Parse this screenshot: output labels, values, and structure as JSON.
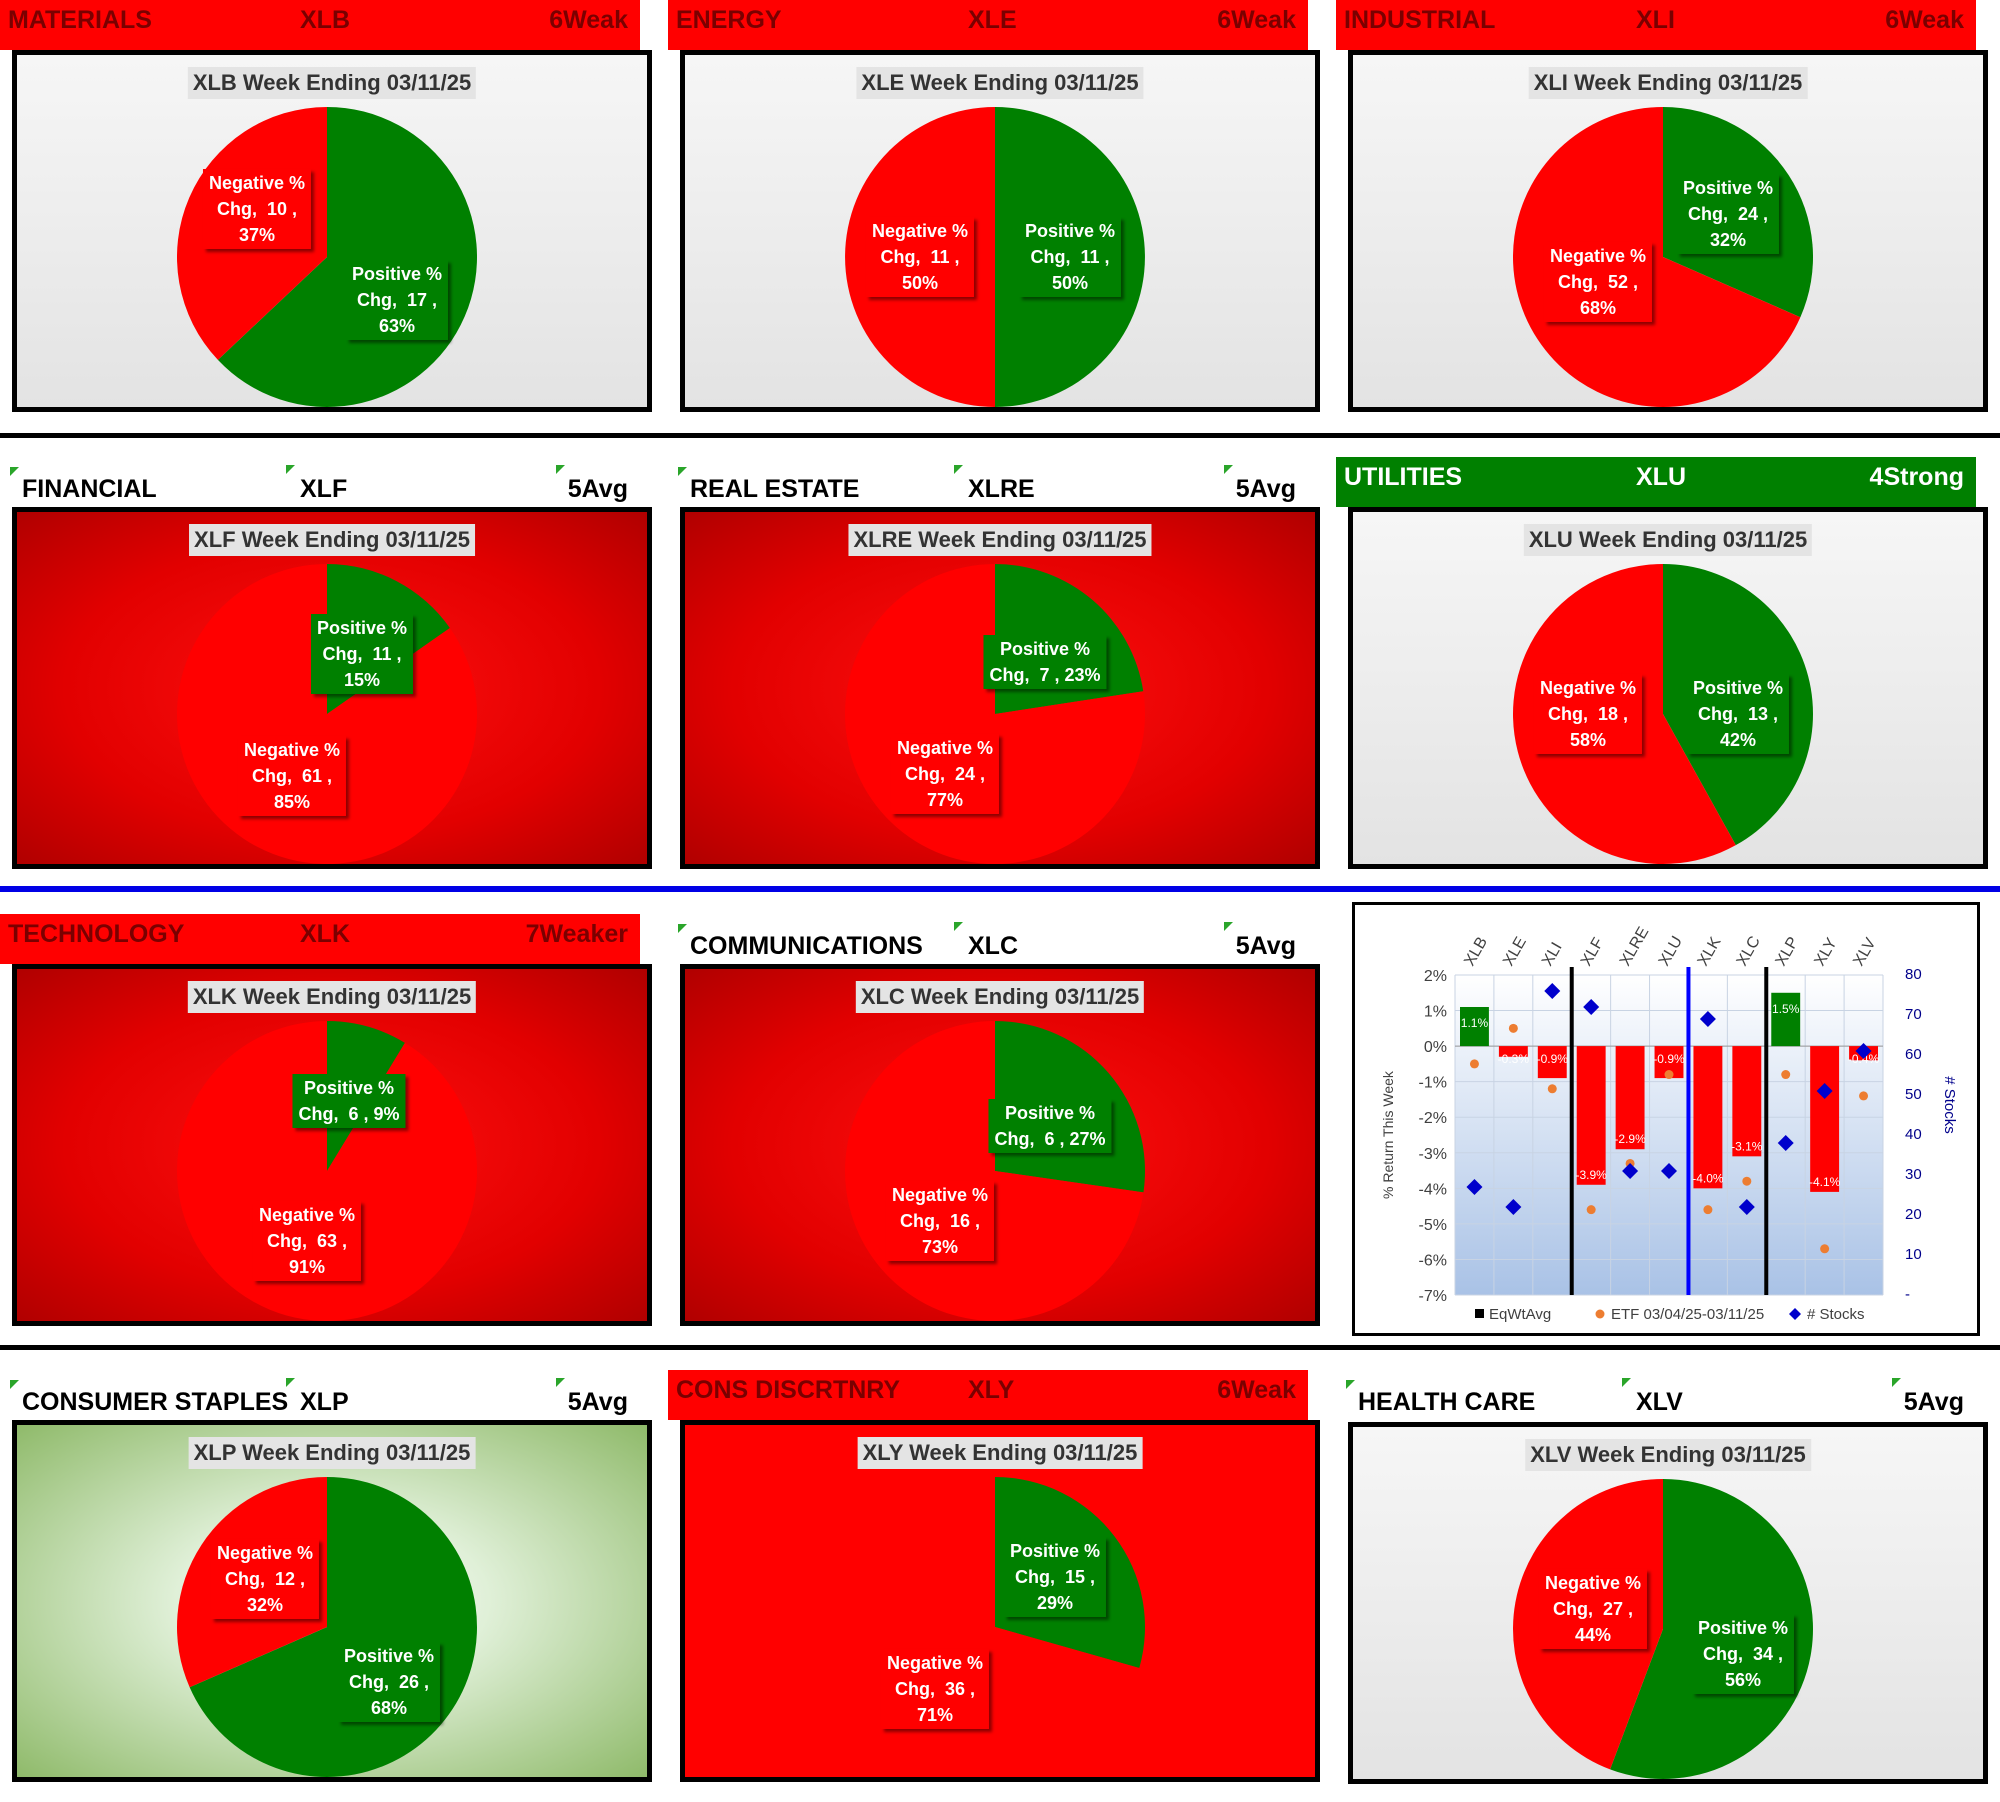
{
  "sectors": [
    {
      "name": "MATERIALS",
      "ticker": "XLB",
      "rating": "6Weak",
      "header_style": "red",
      "panel_bg": "white",
      "title": "XLB Week Ending 03/11/25",
      "pos": {
        "count": "17",
        "pct": "63%"
      },
      "neg": {
        "count": "10",
        "pct": "37%"
      },
      "pos_value": 17,
      "neg_value": 10,
      "pos_label": "Positive %\nChg,  17 ,\n63%",
      "neg_label": "Negative %\nChg,  10 ,\n37%"
    },
    {
      "name": "ENERGY",
      "ticker": "XLE",
      "rating": "6Weak",
      "header_style": "red",
      "panel_bg": "white",
      "title": "XLE Week Ending 03/11/25",
      "pos_value": 11,
      "neg_value": 11,
      "pos_label": "Positive %\nChg,  11 ,\n50%",
      "neg_label": "Negative %\nChg,  11 ,\n50%"
    },
    {
      "name": "INDUSTRIAL",
      "ticker": "XLI",
      "rating": "6Weak",
      "header_style": "red",
      "panel_bg": "white",
      "title": "XLI Week Ending 03/11/25",
      "pos_value": 24,
      "neg_value": 52,
      "pos_label": "Positive %\nChg,  24 ,\n32%",
      "neg_label": "Negative %\nChg,  52 ,\n68%"
    },
    {
      "name": "FINANCIAL",
      "ticker": "XLF",
      "rating": "5Avg",
      "header_style": "plain",
      "panel_bg": "red",
      "title": "XLF Week Ending 03/11/25",
      "pos_value": 11,
      "neg_value": 61,
      "pos_label": "Positive %\nChg,  11 ,\n15%",
      "neg_label": "Negative %\nChg,  61 ,\n85%"
    },
    {
      "name": "REAL ESTATE",
      "ticker": "XLRE",
      "rating": "5Avg",
      "header_style": "plain",
      "panel_bg": "red",
      "title": "XLRE Week Ending 03/11/25",
      "pos_value": 7,
      "neg_value": 24,
      "pos_label": "Positive %\nChg,  7 , 23%",
      "neg_label": "Negative %\nChg,  24 ,\n77%"
    },
    {
      "name": "UTILITIES",
      "ticker": "XLU",
      "rating": "4Strong",
      "header_style": "green",
      "panel_bg": "white",
      "title": "XLU Week Ending 03/11/25",
      "pos_value": 13,
      "neg_value": 18,
      "pos_label": "Positive %\nChg,  13 ,\n42%",
      "neg_label": "Negative %\nChg,  18 ,\n58%"
    },
    {
      "name": "TECHNOLOGY",
      "ticker": "XLK",
      "rating": "7Weaker",
      "header_style": "red",
      "panel_bg": "red",
      "title": "XLK Week Ending 03/11/25",
      "pos_value": 6,
      "neg_value": 63,
      "pos_label": "Positive %\nChg,  6 , 9%",
      "neg_label": "Negative %\nChg,  63 ,\n91%"
    },
    {
      "name": "COMMUNICATIONS",
      "ticker": "XLC",
      "rating": "5Avg",
      "header_style": "plain",
      "panel_bg": "red",
      "title": "XLC Week Ending 03/11/25",
      "pos_value": 6,
      "neg_value": 16,
      "pos_label": "Positive %\nChg,  6 , 27%",
      "neg_label": "Negative %\nChg,  16 ,\n73%"
    },
    {
      "name": "CONSUMER STAPLES",
      "ticker": "XLP",
      "rating": "5Avg",
      "header_style": "plain",
      "panel_bg": "green",
      "title": "XLP Week Ending 03/11/25",
      "pos_value": 26,
      "neg_value": 12,
      "pos_label": "Positive %\nChg,  26 ,\n68%",
      "neg_label": "Negative %\nChg,  12 ,\n32%"
    },
    {
      "name": "CONS DISCRTNRY",
      "ticker": "XLY",
      "rating": "6Weak",
      "header_style": "red",
      "panel_bg": "redflat",
      "title": "XLY Week Ending 03/11/25",
      "pos_value": 15,
      "neg_value": 36,
      "pos_label": "Positive %\nChg,  15 ,\n29%",
      "neg_label": "Negative %\nChg,  36 ,\n71%"
    },
    {
      "name": "HEALTH CARE",
      "ticker": "XLV",
      "rating": "5Avg",
      "header_style": "plain",
      "panel_bg": "white",
      "title": "XLV Week Ending 03/11/25",
      "pos_value": 34,
      "neg_value": 27,
      "pos_label": "Positive %\nChg,  34 ,\n56%",
      "neg_label": "Negative %\nChg,  27 ,\n44%"
    }
  ],
  "chart_data": [
    {
      "type": "pie",
      "title": "XLB Week Ending 03/11/25",
      "categories": [
        "Positive % Chg",
        "Negative % Chg"
      ],
      "values": [
        17,
        10
      ]
    },
    {
      "type": "pie",
      "title": "XLE Week Ending 03/11/25",
      "categories": [
        "Positive % Chg",
        "Negative % Chg"
      ],
      "values": [
        11,
        11
      ]
    },
    {
      "type": "pie",
      "title": "XLI Week Ending 03/11/25",
      "categories": [
        "Positive % Chg",
        "Negative % Chg"
      ],
      "values": [
        24,
        52
      ]
    },
    {
      "type": "pie",
      "title": "XLF Week Ending 03/11/25",
      "categories": [
        "Positive % Chg",
        "Negative % Chg"
      ],
      "values": [
        11,
        61
      ]
    },
    {
      "type": "pie",
      "title": "XLRE Week Ending 03/11/25",
      "categories": [
        "Positive % Chg",
        "Negative % Chg"
      ],
      "values": [
        7,
        24
      ]
    },
    {
      "type": "pie",
      "title": "XLU Week Ending 03/11/25",
      "categories": [
        "Positive % Chg",
        "Negative % Chg"
      ],
      "values": [
        13,
        18
      ]
    },
    {
      "type": "pie",
      "title": "XLK Week Ending 03/11/25",
      "categories": [
        "Positive % Chg",
        "Negative % Chg"
      ],
      "values": [
        6,
        63
      ]
    },
    {
      "type": "pie",
      "title": "XLC Week Ending 03/11/25",
      "categories": [
        "Positive % Chg",
        "Negative % Chg"
      ],
      "values": [
        6,
        16
      ]
    },
    {
      "type": "pie",
      "title": "XLP Week Ending 03/11/25",
      "categories": [
        "Positive % Chg",
        "Negative % Chg"
      ],
      "values": [
        26,
        12
      ]
    },
    {
      "type": "pie",
      "title": "XLY Week Ending 03/11/25",
      "categories": [
        "Positive % Chg",
        "Negative % Chg"
      ],
      "values": [
        15,
        36
      ]
    },
    {
      "type": "pie",
      "title": "XLV Week Ending 03/11/25",
      "categories": [
        "Positive % Chg",
        "Negative % Chg"
      ],
      "values": [
        34,
        27
      ]
    },
    {
      "type": "bar",
      "categories": [
        "XLB",
        "XLE",
        "XLI",
        "XLF",
        "XLRE",
        "XLU",
        "XLK",
        "XLC",
        "XLP",
        "XLY",
        "XLV"
      ],
      "ylabel": "% Return This Week",
      "y2label": "# Stocks",
      "ylim": [
        -7,
        2
      ],
      "y2lim": [
        0,
        80
      ],
      "yticks": [
        "2%",
        "1%",
        "0%",
        "-1%",
        "-2%",
        "-3%",
        "-4%",
        "-5%",
        "-6%",
        "-7%"
      ],
      "y2ticks": [
        "80",
        "70",
        "60",
        "50",
        "40",
        "30",
        "20",
        "10",
        "-"
      ],
      "series": [
        {
          "name": "EqWtAvg",
          "values": [
            1.1,
            -0.3,
            -0.9,
            -3.9,
            -2.9,
            -0.9,
            -4.0,
            -3.1,
            1.5,
            -4.1,
            -0.4
          ],
          "labels": [
            "1.1%",
            "-0.3%",
            "-0.9%",
            "-3.9%",
            "-2.9%",
            "-0.9%",
            "-4.0%",
            "-3.1%",
            "1.5%",
            "-4.1%",
            "-0.4%"
          ]
        },
        {
          "name": "ETF 03/04/25-03/11/25",
          "values": [
            -0.5,
            0.5,
            -1.2,
            -4.6,
            -3.3,
            -0.8,
            -4.6,
            -3.8,
            -0.8,
            -5.7,
            -1.4
          ]
        },
        {
          "name": "# Stocks",
          "values": [
            27,
            22,
            76,
            72,
            31,
            31,
            69,
            22,
            38,
            51,
            61
          ]
        }
      ],
      "legend": "bottom"
    }
  ]
}
